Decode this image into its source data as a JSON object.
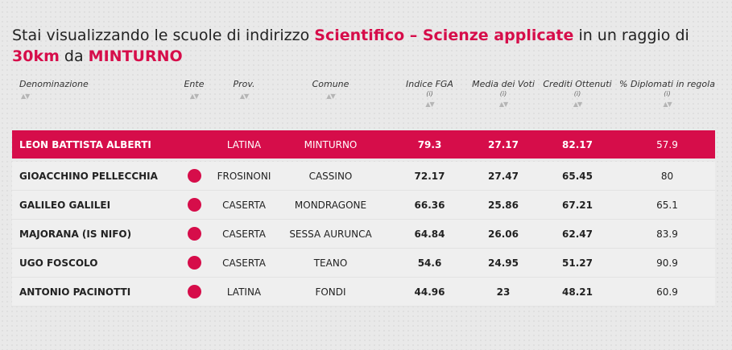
{
  "heading": {
    "prefix": "Stai visualizzando le scuole di indirizzo ",
    "indirizzo": "Scientifico – Scienze applicate",
    "middle": " in un raggio di ",
    "radius": "30km",
    "suffix": " da ",
    "city": "MINTURNO"
  },
  "colors": {
    "accent": "#d60d4a"
  },
  "columns": [
    {
      "label": "Denominazione",
      "info": "",
      "sort": "▲▼"
    },
    {
      "label": "Ente",
      "info": "",
      "sort": "▲▼"
    },
    {
      "label": "Prov.",
      "info": "",
      "sort": "▲▼"
    },
    {
      "label": "Comune",
      "info": "",
      "sort": "▲▼"
    },
    {
      "label": "Indice FGA",
      "info": "(i)",
      "sort": "▲▼"
    },
    {
      "label": "Media dei Voti",
      "info": "(i)",
      "sort": "▲▼"
    },
    {
      "label": "Crediti Ottenuti",
      "info": "(i)",
      "sort": "▲▼"
    },
    {
      "label": "% Diplomati in regola",
      "info": "(i)",
      "sort": "▲▼"
    }
  ],
  "rows": [
    {
      "name": "LEON BATTISTA ALBERTI",
      "ente_icon": "",
      "prov": "LATINA",
      "comune": "MINTURNO",
      "fga": "79.3",
      "media": "27.17",
      "crediti": "82.17",
      "diplomati": "57.9",
      "highlighted": true
    },
    {
      "name": "GIOACCHINO PELLECCHIA",
      "ente_icon": "red-dot-icon",
      "prov": "FROSINONI",
      "comune": "CASSINO",
      "fga": "72.17",
      "media": "27.47",
      "crediti": "65.45",
      "diplomati": "80",
      "highlighted": false
    },
    {
      "name": "GALILEO GALILEI",
      "ente_icon": "red-dot-icon",
      "prov": "CASERTA",
      "comune": "MONDRAGONE",
      "fga": "66.36",
      "media": "25.86",
      "crediti": "67.21",
      "diplomati": "65.1",
      "highlighted": false
    },
    {
      "name": "MAJORANA (IS NIFO)",
      "ente_icon": "red-dot-icon",
      "prov": "CASERTA",
      "comune": "SESSA AURUNCA",
      "fga": "64.84",
      "media": "26.06",
      "crediti": "62.47",
      "diplomati": "83.9",
      "highlighted": false
    },
    {
      "name": "UGO FOSCOLO",
      "ente_icon": "red-dot-icon",
      "prov": "CASERTA",
      "comune": "TEANO",
      "fga": "54.6",
      "media": "24.95",
      "crediti": "51.27",
      "diplomati": "90.9",
      "highlighted": false
    },
    {
      "name": "ANTONIO PACINOTTI",
      "ente_icon": "red-dot-icon",
      "prov": "LATINA",
      "comune": "FONDI",
      "fga": "44.96",
      "media": "23",
      "crediti": "48.21",
      "diplomati": "60.9",
      "highlighted": false
    }
  ]
}
